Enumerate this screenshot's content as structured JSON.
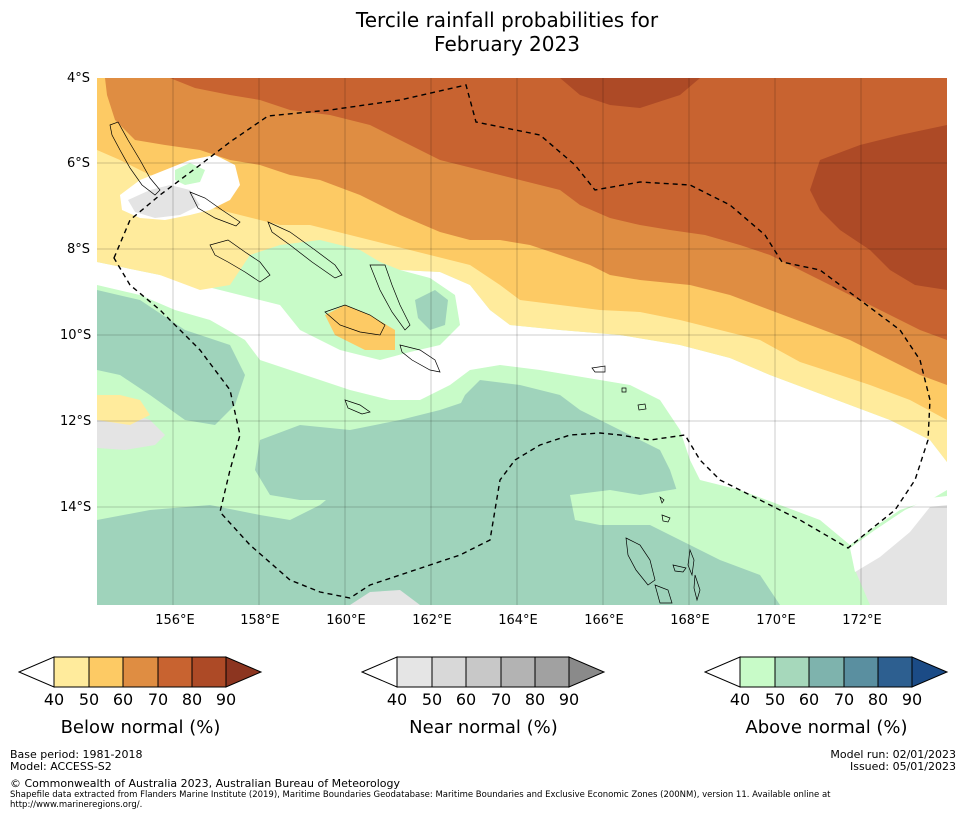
{
  "title_line1": "Tercile rainfall probabilities for",
  "title_line2": "February 2023",
  "lat_labels": [
    "4°S",
    "6°S",
    "8°S",
    "10°S",
    "12°S",
    "14°S"
  ],
  "lon_labels": [
    "156°E",
    "158°E",
    "160°E",
    "162°E",
    "164°E",
    "166°E",
    "168°E",
    "170°E",
    "172°E"
  ],
  "colorbars": [
    {
      "label": "Below normal (%)",
      "ticks": [
        "40",
        "50",
        "60",
        "70",
        "80",
        "90"
      ],
      "colors": [
        "#ffffff",
        "#ffeb9c",
        "#fdca64",
        "#df8d42",
        "#c86330",
        "#ad4a26",
        "#8c3520"
      ]
    },
    {
      "label": "Near normal (%)",
      "ticks": [
        "40",
        "50",
        "60",
        "70",
        "80",
        "90"
      ],
      "colors": [
        "#ffffff",
        "#e5e5e5",
        "#d8d8d8",
        "#c8c8c8",
        "#b3b3b3",
        "#a1a1a1",
        "#8a8a8a"
      ]
    },
    {
      "label": "Above normal (%)",
      "ticks": [
        "40",
        "50",
        "60",
        "70",
        "80",
        "90"
      ],
      "colors": [
        "#ffffff",
        "#c8fbc8",
        "#a6d8bb",
        "#7eb3ad",
        "#5a8fa0",
        "#2d5f90",
        "#1b4b86"
      ]
    }
  ],
  "footer": {
    "base_period": "Base period: 1981-2018",
    "model": "Model: ACCESS-S2",
    "model_run": "Model run: 02/01/2023",
    "issued": "Issued: 05/01/2023",
    "copyright": "© Commonwealth of Australia 2023, Australian Bureau of Meteorology",
    "shapefile_note": "Shapefile data extracted from Flanders Marine Institute (2019), Maritime Boundaries Geodatabase: Maritime Boundaries and Exclusive Economic Zones (200NM), version 11. Available online at http://www.marineregions.org/."
  }
}
